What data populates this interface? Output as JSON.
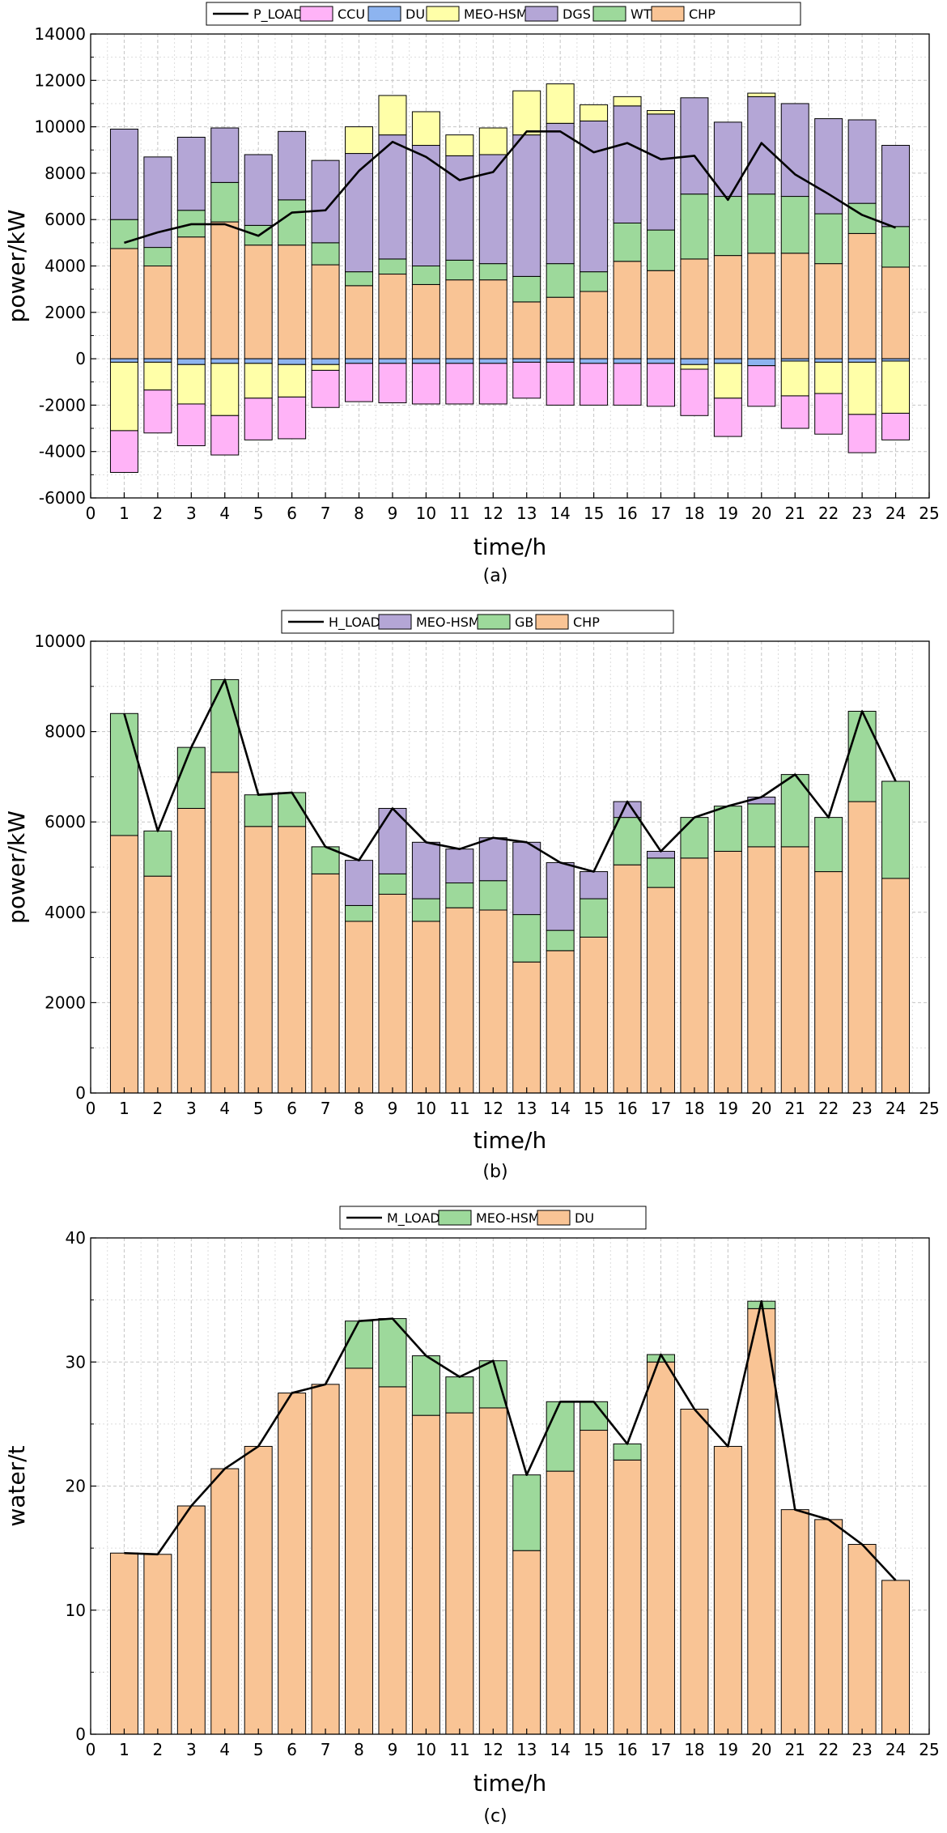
{
  "chart_data": [
    {
      "id": "a",
      "type": "stacked-bar+line",
      "caption": "(a)",
      "xlabel": "time/h",
      "ylabel": "power/kW",
      "xlim": [
        0,
        25
      ],
      "ylim": [
        -6000,
        14000
      ],
      "xticks": [
        0,
        1,
        2,
        3,
        4,
        5,
        6,
        7,
        8,
        9,
        10,
        11,
        12,
        13,
        14,
        15,
        16,
        17,
        18,
        19,
        20,
        21,
        22,
        23,
        24,
        25
      ],
      "yticks": [
        -6000,
        -4000,
        -2000,
        0,
        2000,
        4000,
        6000,
        8000,
        10000,
        12000,
        14000
      ],
      "grid": true,
      "legend_position": "top",
      "legend": [
        {
          "name": "P_LOAD",
          "kind": "line",
          "color": "#000000"
        },
        {
          "name": "CCU",
          "kind": "bar",
          "color": "#ffb3f7"
        },
        {
          "name": "DU",
          "kind": "bar",
          "color": "#8db4f0"
        },
        {
          "name": "MEO-HSM",
          "kind": "bar",
          "color": "#ffffa8"
        },
        {
          "name": "DGS",
          "kind": "bar",
          "color": "#b4a6d6"
        },
        {
          "name": "WT",
          "kind": "bar",
          "color": "#9dd99b"
        },
        {
          "name": "CHP",
          "kind": "bar",
          "color": "#f9c495"
        }
      ],
      "x": [
        1,
        2,
        3,
        4,
        5,
        6,
        7,
        8,
        9,
        10,
        11,
        12,
        13,
        14,
        15,
        16,
        17,
        18,
        19,
        20,
        21,
        22,
        23,
        24
      ],
      "positive_series": [
        {
          "name": "CHP",
          "values": [
            4750,
            4000,
            5250,
            5900,
            4900,
            4900,
            4050,
            3150,
            3650,
            3200,
            3400,
            3400,
            2450,
            2650,
            2900,
            4200,
            3800,
            4300,
            4450,
            4550,
            4550,
            4100,
            5400,
            3950
          ]
        },
        {
          "name": "WT",
          "values": [
            1250,
            800,
            1150,
            1700,
            850,
            1950,
            950,
            600,
            650,
            800,
            850,
            700,
            1100,
            1450,
            850,
            1650,
            1750,
            2800,
            2550,
            2550,
            2450,
            2150,
            1300,
            1750
          ]
        },
        {
          "name": "DGS",
          "values": [
            3900,
            3900,
            3150,
            2350,
            3050,
            2950,
            3550,
            5100,
            5350,
            5200,
            4500,
            4700,
            6100,
            6050,
            6500,
            5050,
            5000,
            4150,
            3200,
            4200,
            4000,
            4100,
            3600,
            3500
          ]
        },
        {
          "name": "MEO-HSM",
          "values": [
            0,
            0,
            0,
            0,
            0,
            0,
            0,
            1150,
            1700,
            1450,
            900,
            1150,
            1900,
            1700,
            700,
            400,
            150,
            0,
            0,
            150,
            0,
            0,
            0,
            0
          ]
        }
      ],
      "negative_series": [
        {
          "name": "DU",
          "values": [
            -150,
            -150,
            -250,
            -200,
            -200,
            -250,
            -250,
            -200,
            -200,
            -200,
            -200,
            -200,
            -150,
            -150,
            -200,
            -200,
            -200,
            -250,
            -200,
            -300,
            -100,
            -150,
            -150,
            -100
          ]
        },
        {
          "name": "MEO-HSM",
          "values": [
            -2950,
            -1200,
            -1700,
            -2250,
            -1500,
            -1400,
            -250,
            0,
            0,
            0,
            0,
            0,
            0,
            0,
            0,
            0,
            0,
            -200,
            -1500,
            0,
            -1500,
            -1350,
            -2250,
            -2250
          ]
        },
        {
          "name": "CCU",
          "values": [
            -1800,
            -1850,
            -1800,
            -1700,
            -1800,
            -1800,
            -1600,
            -1650,
            -1700,
            -1750,
            -1750,
            -1750,
            -1550,
            -1850,
            -1800,
            -1800,
            -1850,
            -2000,
            -1650,
            -1750,
            -1400,
            -1750,
            -1650,
            -1150
          ]
        }
      ],
      "line": {
        "name": "P_LOAD",
        "values": [
          5000,
          5450,
          5800,
          5800,
          5300,
          6300,
          6400,
          8100,
          9350,
          8700,
          7700,
          8050,
          9800,
          9800,
          8900,
          9300,
          8600,
          8750,
          6850,
          9300,
          7950,
          7100,
          6200,
          5650
        ]
      }
    },
    {
      "id": "b",
      "type": "stacked-bar+line",
      "caption": "(b)",
      "xlabel": "time/h",
      "ylabel": "power/kW",
      "xlim": [
        0,
        25
      ],
      "ylim": [
        0,
        10000
      ],
      "xticks": [
        0,
        1,
        2,
        3,
        4,
        5,
        6,
        7,
        8,
        9,
        10,
        11,
        12,
        13,
        14,
        15,
        16,
        17,
        18,
        19,
        20,
        21,
        22,
        23,
        24,
        25
      ],
      "yticks": [
        0,
        2000,
        4000,
        6000,
        8000,
        10000
      ],
      "grid": true,
      "legend_position": "top",
      "legend": [
        {
          "name": "H_LOAD",
          "kind": "line",
          "color": "#000000"
        },
        {
          "name": "MEO-HSM",
          "kind": "bar",
          "color": "#b4a6d6"
        },
        {
          "name": "GB",
          "kind": "bar",
          "color": "#9dd99b"
        },
        {
          "name": "CHP",
          "kind": "bar",
          "color": "#f9c495"
        }
      ],
      "x": [
        1,
        2,
        3,
        4,
        5,
        6,
        7,
        8,
        9,
        10,
        11,
        12,
        13,
        14,
        15,
        16,
        17,
        18,
        19,
        20,
        21,
        22,
        23,
        24
      ],
      "positive_series": [
        {
          "name": "CHP",
          "values": [
            5700,
            4800,
            6300,
            7100,
            5900,
            5900,
            4850,
            3800,
            4400,
            3800,
            4100,
            4050,
            2900,
            3150,
            3450,
            5050,
            4550,
            5200,
            5350,
            5450,
            5450,
            4900,
            6450,
            4750
          ]
        },
        {
          "name": "GB",
          "values": [
            2700,
            1000,
            1350,
            2050,
            700,
            750,
            600,
            350,
            450,
            500,
            550,
            650,
            1050,
            450,
            850,
            1050,
            650,
            900,
            1000,
            950,
            1600,
            1200,
            2000,
            2150
          ]
        },
        {
          "name": "MEO-HSM",
          "values": [
            0,
            0,
            0,
            0,
            0,
            0,
            0,
            1000,
            1450,
            1250,
            750,
            950,
            1600,
            1500,
            600,
            350,
            150,
            0,
            0,
            150,
            0,
            0,
            0,
            0
          ]
        }
      ],
      "negative_series": [],
      "line": {
        "name": "H_LOAD",
        "values": [
          8400,
          5800,
          7650,
          9150,
          6600,
          6650,
          5450,
          5150,
          6300,
          5550,
          5400,
          5650,
          5550,
          5100,
          4900,
          6450,
          5350,
          6100,
          6350,
          6550,
          7050,
          6100,
          8450,
          6900
        ]
      }
    },
    {
      "id": "c",
      "type": "stacked-bar+line",
      "caption": "(c)",
      "xlabel": "time/h",
      "ylabel": "water/t",
      "xlim": [
        0,
        25
      ],
      "ylim": [
        0,
        40
      ],
      "xticks": [
        0,
        1,
        2,
        3,
        4,
        5,
        6,
        7,
        8,
        9,
        10,
        11,
        12,
        13,
        14,
        15,
        16,
        17,
        18,
        19,
        20,
        21,
        22,
        23,
        24,
        25
      ],
      "yticks": [
        0,
        10,
        20,
        30,
        40
      ],
      "grid": true,
      "legend_position": "top",
      "legend": [
        {
          "name": "M_LOAD",
          "kind": "line",
          "color": "#000000"
        },
        {
          "name": "MEO-HSM",
          "kind": "bar",
          "color": "#9dd99b"
        },
        {
          "name": "DU",
          "kind": "bar",
          "color": "#f9c495"
        }
      ],
      "x": [
        1,
        2,
        3,
        4,
        5,
        6,
        7,
        8,
        9,
        10,
        11,
        12,
        13,
        14,
        15,
        16,
        17,
        18,
        19,
        20,
        21,
        22,
        23,
        24
      ],
      "positive_series": [
        {
          "name": "DU",
          "values": [
            14.6,
            14.5,
            18.4,
            21.4,
            23.2,
            27.5,
            28.2,
            29.5,
            28.0,
            25.7,
            25.9,
            26.3,
            14.8,
            21.2,
            24.5,
            22.1,
            30.0,
            26.2,
            23.2,
            34.3,
            18.1,
            17.3,
            15.3,
            12.4
          ]
        },
        {
          "name": "MEO-HSM",
          "values": [
            0,
            0,
            0,
            0,
            0,
            0,
            0,
            3.8,
            5.5,
            4.8,
            2.9,
            3.8,
            6.1,
            5.6,
            2.3,
            1.3,
            0.6,
            0,
            0,
            0.6,
            0,
            0,
            0,
            0
          ]
        }
      ],
      "negative_series": [],
      "line": {
        "name": "M_LOAD",
        "values": [
          14.6,
          14.5,
          18.4,
          21.4,
          23.2,
          27.5,
          28.2,
          33.3,
          33.5,
          30.5,
          28.8,
          30.1,
          20.9,
          26.8,
          26.8,
          23.4,
          30.6,
          26.2,
          23.2,
          34.9,
          18.1,
          17.3,
          15.3,
          12.4
        ]
      }
    }
  ]
}
